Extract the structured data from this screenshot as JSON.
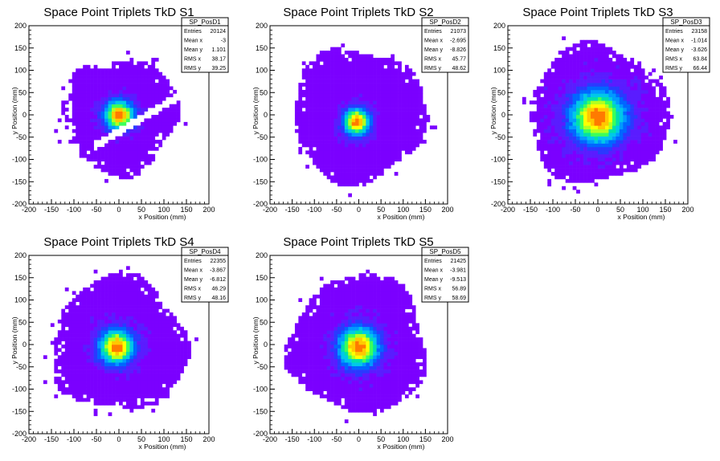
{
  "window": {
    "background": "#ffffff"
  },
  "colors": {
    "palette": [
      "#7b00ff",
      "#5a1cff",
      "#2a39ff",
      "#0066ff",
      "#0099ff",
      "#00c8e8",
      "#00e0a8",
      "#3cff5a",
      "#b4ff1e",
      "#ffff00",
      "#ffc800",
      "#ff7a00",
      "#ff0000"
    ]
  },
  "chart_data": [
    {
      "type": "heatmap",
      "title": "Space Point Triplets TkD S1",
      "xlabel": "x Position (mm)",
      "ylabel": "y Position (mm)",
      "xlim": [
        -200,
        200
      ],
      "ylim": [
        -200,
        200
      ],
      "xticks": [
        -200,
        -150,
        -100,
        -50,
        0,
        50,
        100,
        150,
        200
      ],
      "yticks": [
        -200,
        -150,
        -100,
        -50,
        0,
        50,
        100,
        150,
        200
      ],
      "stats": {
        "name": "SP_PosD1",
        "rows": [
          [
            "Entries",
            "20124"
          ],
          [
            "Mean x",
            "-3"
          ],
          [
            "Mean y",
            "1.101"
          ],
          [
            "RMS x",
            "38.17"
          ],
          [
            "RMS y",
            "39.25"
          ]
        ]
      },
      "distribution": {
        "center": [
          0,
          0
        ],
        "core_sigma": 22,
        "envelope_radius": 130,
        "gap_band": true
      }
    },
    {
      "type": "heatmap",
      "title": "Space Point Triplets TkD S2",
      "xlabel": "x Position (mm)",
      "ylabel": "y Position (mm)",
      "xlim": [
        -200,
        200
      ],
      "ylim": [
        -200,
        200
      ],
      "xticks": [
        -200,
        -150,
        -100,
        -50,
        0,
        50,
        100,
        150,
        200
      ],
      "yticks": [
        -200,
        -150,
        -100,
        -50,
        0,
        50,
        100,
        150,
        200
      ],
      "stats": {
        "name": "SP_PosD2",
        "rows": [
          [
            "Entries",
            "21073"
          ],
          [
            "Mean x",
            "-2.695"
          ],
          [
            "Mean y",
            "-8.826"
          ],
          [
            "RMS x",
            "45.77"
          ],
          [
            "RMS y",
            "48.62"
          ]
        ]
      },
      "distribution": {
        "center": [
          -5,
          -15
        ],
        "core_sigma": 20,
        "envelope_radius": 150,
        "gap_band": false
      }
    },
    {
      "type": "heatmap",
      "title": "Space Point Triplets TkD S3",
      "xlabel": "x Position (mm)",
      "ylabel": "y Position (mm)",
      "xlim": [
        -200,
        200
      ],
      "ylim": [
        -200,
        200
      ],
      "xticks": [
        -200,
        -150,
        -100,
        -50,
        0,
        50,
        100,
        150,
        200
      ],
      "yticks": [
        -200,
        -150,
        -100,
        -50,
        0,
        50,
        100,
        150,
        200
      ],
      "stats": {
        "name": "SP_PosD3",
        "rows": [
          [
            "Entries",
            "23158"
          ],
          [
            "Mean x",
            "-1.014"
          ],
          [
            "Mean y",
            "-3.626"
          ],
          [
            "RMS x",
            "63.84"
          ],
          [
            "RMS y",
            "66.44"
          ]
        ]
      },
      "distribution": {
        "center": [
          0,
          -5
        ],
        "core_sigma": 40,
        "envelope_radius": 155,
        "gap_band": false
      }
    },
    {
      "type": "heatmap",
      "title": "Space Point Triplets TkD S4",
      "xlabel": "x Position (mm)",
      "ylabel": "y Position (mm)",
      "xlim": [
        -200,
        200
      ],
      "ylim": [
        -200,
        200
      ],
      "xticks": [
        -200,
        -150,
        -100,
        -50,
        0,
        50,
        100,
        150,
        200
      ],
      "yticks": [
        -200,
        -150,
        -100,
        -50,
        0,
        50,
        100,
        150,
        200
      ],
      "stats": {
        "name": "SP_PosD4",
        "rows": [
          [
            "Entries",
            "22355"
          ],
          [
            "Mean x",
            "-3.867"
          ],
          [
            "Mean y",
            "-6.812"
          ],
          [
            "RMS x",
            "46.29"
          ],
          [
            "RMS y",
            "48.16"
          ]
        ]
      },
      "distribution": {
        "center": [
          -5,
          -5
        ],
        "core_sigma": 26,
        "envelope_radius": 150,
        "gap_band": false
      }
    },
    {
      "type": "heatmap",
      "title": "Space Point Triplets TkD S5",
      "xlabel": "x Position (mm)",
      "ylabel": "y Position (mm)",
      "xlim": [
        -200,
        200
      ],
      "ylim": [
        -200,
        200
      ],
      "xticks": [
        -200,
        -150,
        -100,
        -50,
        0,
        50,
        100,
        150,
        200
      ],
      "yticks": [
        -200,
        -150,
        -100,
        -50,
        0,
        50,
        100,
        150,
        200
      ],
      "stats": {
        "name": "SP_PosD5",
        "rows": [
          [
            "Entries",
            "21425"
          ],
          [
            "Mean x",
            "-3.981"
          ],
          [
            "Mean y",
            "-9.513"
          ],
          [
            "RMS x",
            "56.89"
          ],
          [
            "RMS y",
            "58.69"
          ]
        ]
      },
      "distribution": {
        "center": [
          0,
          -5
        ],
        "core_sigma": 30,
        "envelope_radius": 155,
        "gap_band": false
      }
    }
  ]
}
